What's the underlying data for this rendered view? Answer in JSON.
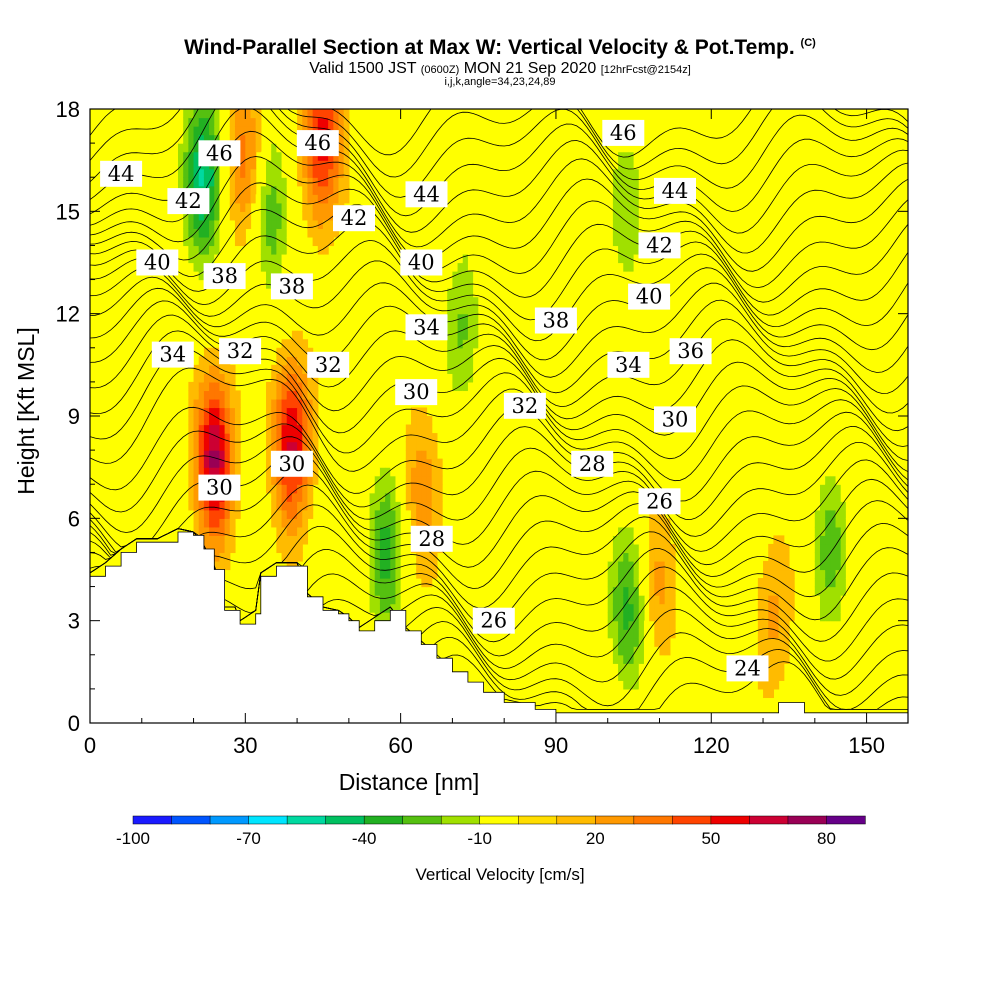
{
  "header": {
    "title": "Wind-Parallel Section at Max W: Vertical Velocity & Pot.Temp.",
    "copyright": "(C)",
    "valid_prefix": "Valid 1500 JST",
    "valid_z": "(0600Z)",
    "valid_date": "MON 21 Sep 2020",
    "forecast": "[12hrFcst@2154z]",
    "indices": "i,j,k,angle=34,23,24,89"
  },
  "chart_data": {
    "type": "heatmap",
    "title": "Wind-Parallel Section at Max W: Vertical Velocity & Pot.Temp.",
    "xlabel": "Distance [nm]",
    "ylabel": "Height [Kft MSL]",
    "xlim": [
      0,
      158
    ],
    "ylim": [
      0,
      18
    ],
    "xticks": [
      0,
      30,
      60,
      90,
      120,
      150
    ],
    "yticks": [
      0,
      3,
      6,
      9,
      12,
      15,
      18
    ],
    "colorbar": {
      "title": "Vertical Velocity [cm/s]",
      "levels": [
        -100,
        -90,
        -80,
        -70,
        -60,
        -50,
        -40,
        -30,
        -20,
        -10,
        0,
        10,
        20,
        30,
        40,
        50,
        60,
        70,
        80,
        90
      ],
      "tick_labels": [
        "-100",
        "-70",
        "-40",
        "-10",
        "20",
        "50",
        "80"
      ],
      "colors": [
        "#1a1aff",
        "#0055ff",
        "#0099ff",
        "#00e5ff",
        "#00d9a0",
        "#00c060",
        "#22b022",
        "#55c010",
        "#a0e000",
        "#ffff00",
        "#ffdd00",
        "#ffbb00",
        "#ff9900",
        "#ff7700",
        "#ff4400",
        "#ee0000",
        "#cc0033",
        "#990055",
        "#660088"
      ]
    },
    "updraft_cores": [
      {
        "x": 24,
        "y": 7.8,
        "w": 70
      },
      {
        "x": 39,
        "y": 8.3,
        "w": 60
      },
      {
        "x": 45,
        "y": 17.0,
        "w": 55
      },
      {
        "x": 30,
        "y": 16.5,
        "w": 35
      },
      {
        "x": 64,
        "y": 6.8,
        "w": 25
      },
      {
        "x": 110,
        "y": 4.0,
        "w": 20
      },
      {
        "x": 132,
        "y": 3.2,
        "w": 20
      }
    ],
    "downdraft_cores": [
      {
        "x": 22,
        "y": 16.0,
        "w": -55
      },
      {
        "x": 35,
        "y": 15.0,
        "w": -30
      },
      {
        "x": 57,
        "y": 5.0,
        "w": -35
      },
      {
        "x": 104,
        "y": 3.3,
        "w": -35
      },
      {
        "x": 72,
        "y": 11.5,
        "w": -25
      },
      {
        "x": 104,
        "y": 15.0,
        "w": -20
      },
      {
        "x": 143,
        "y": 5.0,
        "w": -25
      }
    ],
    "theta_contour_labels": [
      {
        "text": "46",
        "x": 25,
        "y": 16.7
      },
      {
        "text": "46",
        "x": 44,
        "y": 17.0
      },
      {
        "text": "46",
        "x": 103,
        "y": 17.3
      },
      {
        "text": "44",
        "x": 6,
        "y": 16.1
      },
      {
        "text": "44",
        "x": 65,
        "y": 15.5
      },
      {
        "text": "44",
        "x": 113,
        "y": 15.6
      },
      {
        "text": "42",
        "x": 19,
        "y": 15.3
      },
      {
        "text": "42",
        "x": 51,
        "y": 14.8
      },
      {
        "text": "42",
        "x": 110,
        "y": 14.0
      },
      {
        "text": "40",
        "x": 13,
        "y": 13.5
      },
      {
        "text": "40",
        "x": 64,
        "y": 13.5
      },
      {
        "text": "40",
        "x": 108,
        "y": 12.5
      },
      {
        "text": "38",
        "x": 26,
        "y": 13.1
      },
      {
        "text": "38",
        "x": 39,
        "y": 12.8
      },
      {
        "text": "38",
        "x": 90,
        "y": 11.8
      },
      {
        "text": "36",
        "x": 116,
        "y": 10.9
      },
      {
        "text": "34",
        "x": 16,
        "y": 10.8
      },
      {
        "text": "34",
        "x": 65,
        "y": 11.6
      },
      {
        "text": "34",
        "x": 104,
        "y": 10.5
      },
      {
        "text": "32",
        "x": 29,
        "y": 10.9
      },
      {
        "text": "32",
        "x": 46,
        "y": 10.5
      },
      {
        "text": "32",
        "x": 84,
        "y": 9.3
      },
      {
        "text": "30",
        "x": 63,
        "y": 9.7
      },
      {
        "text": "30",
        "x": 113,
        "y": 8.9
      },
      {
        "text": "30",
        "x": 25,
        "y": 6.9
      },
      {
        "text": "30",
        "x": 39,
        "y": 7.6
      },
      {
        "text": "28",
        "x": 97,
        "y": 7.6
      },
      {
        "text": "28",
        "x": 66,
        "y": 5.4
      },
      {
        "text": "26",
        "x": 110,
        "y": 6.5
      },
      {
        "text": "26",
        "x": 78,
        "y": 3.0
      },
      {
        "text": "24",
        "x": 127,
        "y": 1.6
      }
    ],
    "terrain": [
      {
        "x": 0,
        "h": 4.3
      },
      {
        "x": 3,
        "h": 4.6
      },
      {
        "x": 6,
        "h": 5.0
      },
      {
        "x": 9,
        "h": 5.3
      },
      {
        "x": 13,
        "h": 5.3
      },
      {
        "x": 17,
        "h": 5.6
      },
      {
        "x": 20,
        "h": 5.5
      },
      {
        "x": 22,
        "h": 5.1
      },
      {
        "x": 24,
        "h": 4.5
      },
      {
        "x": 26,
        "h": 3.3
      },
      {
        "x": 28,
        "h": 3.3
      },
      {
        "x": 29,
        "h": 2.9
      },
      {
        "x": 32,
        "h": 3.2
      },
      {
        "x": 33,
        "h": 4.3
      },
      {
        "x": 36,
        "h": 4.6
      },
      {
        "x": 40,
        "h": 4.6
      },
      {
        "x": 42,
        "h": 3.7
      },
      {
        "x": 45,
        "h": 3.3
      },
      {
        "x": 48,
        "h": 3.2
      },
      {
        "x": 50,
        "h": 3.0
      },
      {
        "x": 52,
        "h": 2.7
      },
      {
        "x": 55,
        "h": 3.0
      },
      {
        "x": 58,
        "h": 3.3
      },
      {
        "x": 61,
        "h": 2.7
      },
      {
        "x": 64,
        "h": 2.3
      },
      {
        "x": 67,
        "h": 1.9
      },
      {
        "x": 70,
        "h": 1.5
      },
      {
        "x": 73,
        "h": 1.2
      },
      {
        "x": 76,
        "h": 0.9
      },
      {
        "x": 80,
        "h": 0.6
      },
      {
        "x": 86,
        "h": 0.4
      },
      {
        "x": 90,
        "h": 0.3
      },
      {
        "x": 131,
        "h": 0.3
      },
      {
        "x": 133,
        "h": 0.6
      },
      {
        "x": 138,
        "h": 0.3
      },
      {
        "x": 158,
        "h": 0.3
      }
    ]
  }
}
